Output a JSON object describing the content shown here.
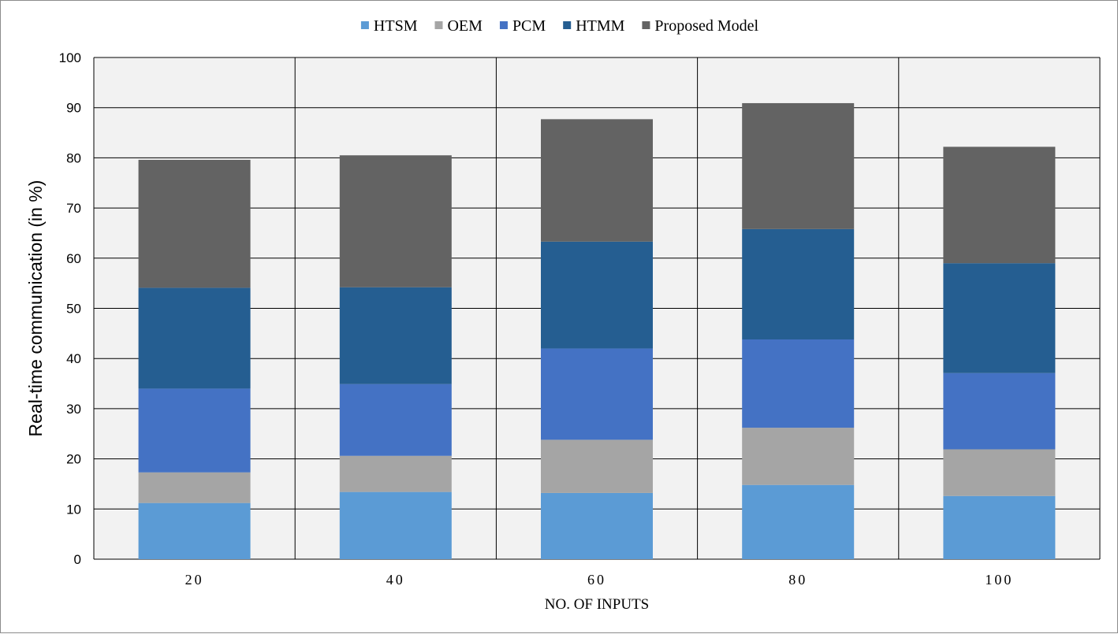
{
  "chart_data": {
    "type": "bar",
    "stacked": true,
    "categories": [
      "20",
      "40",
      "60",
      "80",
      "100"
    ],
    "series": [
      {
        "name": "HTSM",
        "color": "#5b9bd5",
        "values": [
          11.2,
          13.4,
          13.2,
          14.8,
          12.6
        ]
      },
      {
        "name": "OEM",
        "color": "#a5a5a5",
        "values": [
          6.1,
          7.2,
          10.6,
          11.4,
          9.3
        ]
      },
      {
        "name": "PCM",
        "color": "#4472c4",
        "values": [
          16.7,
          14.3,
          18.2,
          17.6,
          15.2
        ]
      },
      {
        "name": "HTMM",
        "color": "#255e91",
        "values": [
          20.1,
          19.3,
          21.3,
          22.0,
          21.9
        ]
      },
      {
        "name": "Proposed Model",
        "color": "#636363",
        "values": [
          25.5,
          26.3,
          24.4,
          25.1,
          23.2
        ]
      }
    ],
    "title": "",
    "xlabel": "NO. OF INPUTS",
    "ylabel": "Real-time communication (in %)",
    "ylim": [
      0,
      100
    ],
    "yticks": [
      0,
      10,
      20,
      30,
      40,
      50,
      60,
      70,
      80,
      90,
      100
    ],
    "grid": true,
    "legend_position": "top",
    "plot_background": "#f2f2f2"
  }
}
